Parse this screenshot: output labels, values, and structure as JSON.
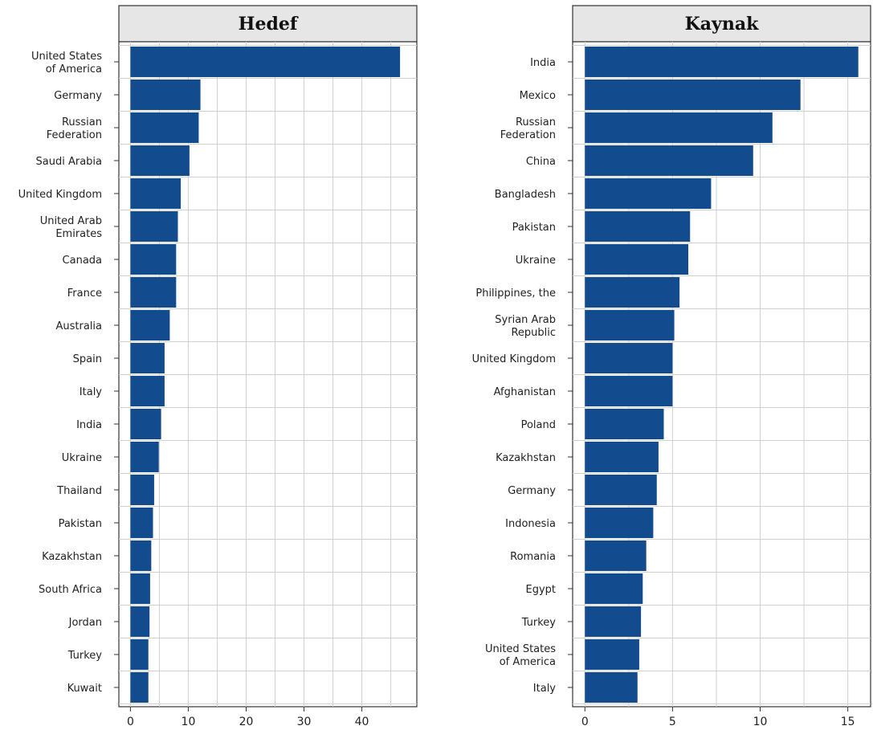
{
  "colors": {
    "bar": "#134B8F",
    "grid": "#cfcfcf",
    "panel_border": "#333333",
    "header_fill": "#e6e6e6"
  },
  "chart_data": [
    {
      "type": "bar",
      "orientation": "horizontal",
      "title": "Hedef",
      "categories": [
        "United States\nof America",
        "Germany",
        "Russian\nFederation",
        "Saudi Arabia",
        "United Kingdom",
        "United Arab\nEmirates",
        "Canada",
        "France",
        "Australia",
        "Spain",
        "Italy",
        "India",
        "Ukraine",
        "Thailand",
        "Pakistan",
        "Kazakhstan",
        "South Africa",
        "Jordan",
        "Turkey",
        "Kuwait"
      ],
      "values": [
        46.6,
        12.1,
        11.8,
        10.2,
        8.7,
        8.2,
        7.9,
        7.9,
        6.8,
        5.9,
        5.9,
        5.3,
        4.9,
        4.1,
        3.9,
        3.6,
        3.4,
        3.3,
        3.1,
        3.1
      ],
      "xticks": [
        0,
        10,
        20,
        30,
        40
      ],
      "xlim": [
        -2,
        49.5
      ],
      "grid": true
    },
    {
      "type": "bar",
      "orientation": "horizontal",
      "title": "Kaynak",
      "categories": [
        "India",
        "Mexico",
        "Russian\nFederation",
        "China",
        "Bangladesh",
        "Pakistan",
        "Ukraine",
        "Philippines, the",
        "Syrian Arab\nRepublic",
        "United Kingdom",
        "Afghanistan",
        "Poland",
        "Kazakhstan",
        "Germany",
        "Indonesia",
        "Romania",
        "Egypt",
        "Turkey",
        "United States\nof America",
        "Italy"
      ],
      "values": [
        15.6,
        12.3,
        10.7,
        9.6,
        7.2,
        6.0,
        5.9,
        5.4,
        5.1,
        5.0,
        5.0,
        4.5,
        4.2,
        4.1,
        3.9,
        3.5,
        3.3,
        3.2,
        3.1,
        3.0
      ],
      "xticks": [
        0,
        5,
        10,
        15
      ],
      "xlim": [
        -0.7,
        16.3
      ],
      "grid": true
    }
  ]
}
